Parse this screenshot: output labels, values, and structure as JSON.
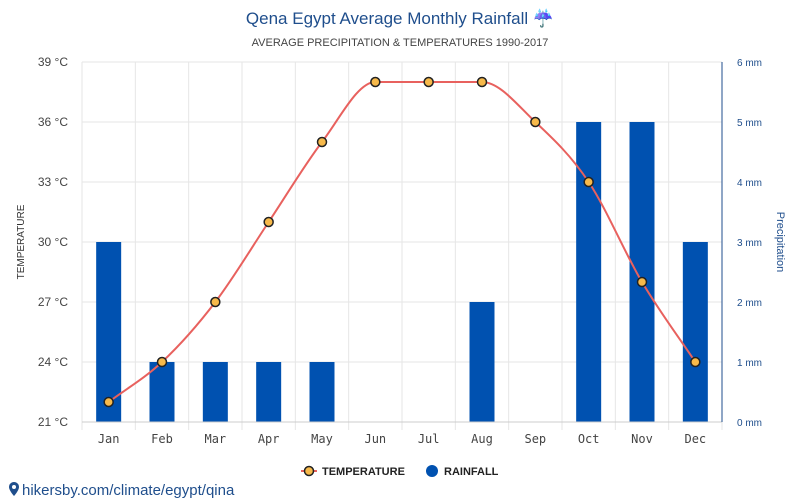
{
  "colors": {
    "temperature_line": "#e8615e",
    "temperature_marker_fill": "#f7b94a",
    "temperature_marker_stroke": "#222222",
    "rainfall_bar": "#0051b0",
    "title": "#1f4e8c",
    "grid": "#e6e6e6"
  },
  "icons": {
    "title_icon": "umbrella-rain-icon",
    "source_icon": "location-pin-icon"
  },
  "source_text": "hikersby.com/climate/egypt/qina",
  "chart_data": {
    "type": "bar+line",
    "title": "Qena Egypt Average Monthly Rainfall ☔",
    "subtitle": "AVERAGE PRECIPITATION & TEMPERATURES 1990-2017",
    "categories": [
      "Jan",
      "Feb",
      "Mar",
      "Apr",
      "May",
      "Jun",
      "Jul",
      "Aug",
      "Sep",
      "Oct",
      "Nov",
      "Dec"
    ],
    "series": [
      {
        "name": "TEMPERATURE",
        "type": "line",
        "axis": "left",
        "values": [
          22,
          24,
          27,
          31,
          35,
          38,
          38,
          38,
          36,
          33,
          28,
          24
        ]
      },
      {
        "name": "RAINFALL",
        "type": "bar",
        "axis": "right",
        "values": [
          3,
          1,
          1,
          1,
          1,
          0,
          0,
          2,
          0,
          5,
          5,
          3
        ]
      }
    ],
    "y_left": {
      "label": "TEMPERATURE",
      "ylim": [
        21,
        39
      ],
      "ticks": [
        21,
        24,
        27,
        30,
        33,
        36,
        39
      ],
      "tick_labels": [
        "21 °C",
        "24 °C",
        "27 °C",
        "30 °C",
        "33 °C",
        "36 °C",
        "39 °C"
      ]
    },
    "y_right": {
      "label": "Precipitation",
      "ylim": [
        0,
        6
      ],
      "ticks": [
        0,
        1,
        2,
        3,
        4,
        5,
        6
      ],
      "tick_labels": [
        "0 mm",
        "1 mm",
        "2 mm",
        "3 mm",
        "4 mm",
        "5 mm",
        "6 mm"
      ]
    },
    "grid": true,
    "legend_placement": "bottom-center"
  }
}
